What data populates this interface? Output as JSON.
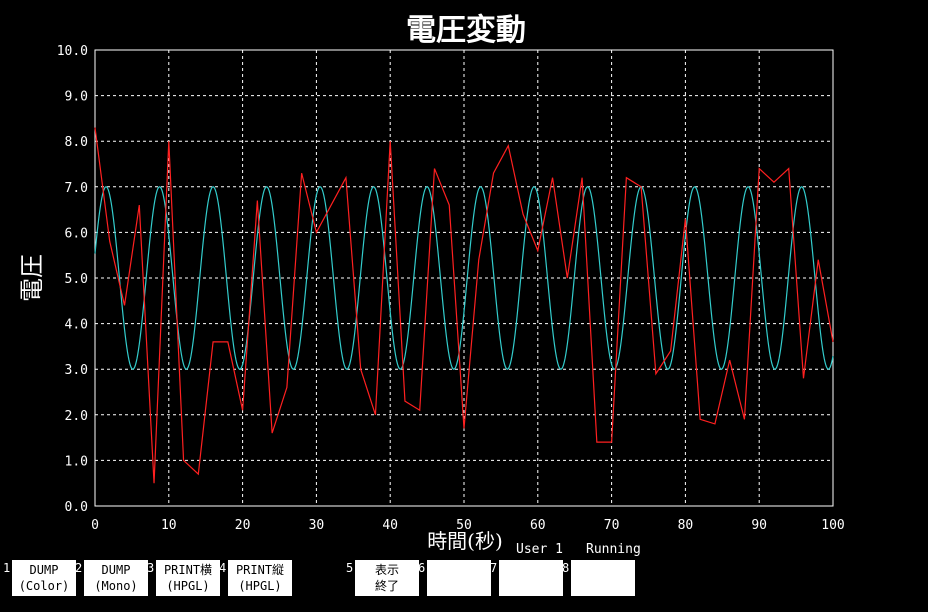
{
  "chart_data": {
    "type": "line",
    "title": "電圧変動",
    "xlabel": "時間(秒)",
    "ylabel": "電圧",
    "xlim": [
      0,
      100
    ],
    "ylim": [
      0,
      10
    ],
    "grid": true,
    "xticks": [
      "0",
      "10",
      "20",
      "30",
      "40",
      "50",
      "60",
      "70",
      "80",
      "90",
      "100"
    ],
    "yticks": [
      "0.0",
      "1.0",
      "2.0",
      "3.0",
      "4.0",
      "5.0",
      "6.0",
      "7.0",
      "8.0",
      "9.0",
      "10.0"
    ],
    "series": [
      {
        "color": "#ff2020",
        "x": [
          0,
          2,
          4,
          6,
          8,
          10,
          12,
          14,
          16,
          18,
          20,
          22,
          24,
          26,
          28,
          30,
          32,
          34,
          36,
          38,
          40,
          42,
          44,
          46,
          48,
          50,
          52,
          54,
          56,
          58,
          60,
          62,
          64,
          66,
          68,
          70,
          72,
          74,
          76,
          78,
          80,
          82,
          84,
          86,
          88,
          90,
          92,
          94,
          96,
          98,
          100
        ],
        "y": [
          8.3,
          5.8,
          4.4,
          6.6,
          0.5,
          8.0,
          1.0,
          0.7,
          3.6,
          3.6,
          2.1,
          6.7,
          1.6,
          2.6,
          7.3,
          6.0,
          6.6,
          7.2,
          3.0,
          2.0,
          8.0,
          2.3,
          2.1,
          7.4,
          6.6,
          1.7,
          5.4,
          7.3,
          7.9,
          6.4,
          5.6,
          7.2,
          5.0,
          7.2,
          1.4,
          1.4,
          7.2,
          7.0,
          2.9,
          3.4,
          6.3,
          1.9,
          1.8,
          3.2,
          1.9,
          7.4,
          7.1,
          7.4,
          2.8,
          5.4,
          3.6
        ]
      },
      {
        "color": "#33cccc",
        "function": "sine",
        "center": 5,
        "amplitude": 2,
        "period": 7.25,
        "phase_max_x": 1.5
      }
    ]
  },
  "status": {
    "user": "User 1",
    "state": "Running"
  },
  "fkeys": [
    {
      "num": "1",
      "line1": "DUMP",
      "line2": "(Color)"
    },
    {
      "num": "2",
      "line1": "DUMP",
      "line2": "(Mono)"
    },
    {
      "num": "3",
      "line1": "PRINT横",
      "line2": "(HPGL)"
    },
    {
      "num": "4",
      "line1": "PRINT縦",
      "line2": "(HPGL)"
    },
    {
      "num": "5",
      "line1": "表示",
      "line2": "終了"
    },
    {
      "num": "6",
      "line1": "",
      "line2": ""
    },
    {
      "num": "7",
      "line1": "",
      "line2": ""
    },
    {
      "num": "8",
      "line1": "",
      "line2": ""
    }
  ]
}
